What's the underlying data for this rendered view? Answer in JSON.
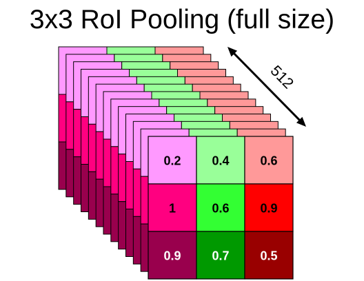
{
  "title": "3x3 RoI Pooling (full size)",
  "depth_label": "512",
  "front_grid": {
    "rows": [
      [
        {
          "value": "0.2",
          "fill": "#ff99ff",
          "text": "#000000"
        },
        {
          "value": "0.4",
          "fill": "#99ff99",
          "text": "#000000"
        },
        {
          "value": "0.6",
          "fill": "#ff9999",
          "text": "#000000"
        }
      ],
      [
        {
          "value": "1",
          "fill": "#ff0080",
          "text": "#000000"
        },
        {
          "value": "0.6",
          "fill": "#33ff33",
          "text": "#000000"
        },
        {
          "value": "0.9",
          "fill": "#ff0000",
          "text": "#000000"
        }
      ],
      [
        {
          "value": "0.9",
          "fill": "#99004d",
          "text": "#ffffff"
        },
        {
          "value": "0.7",
          "fill": "#009900",
          "text": "#ffffff"
        },
        {
          "value": "0.5",
          "fill": "#990000",
          "text": "#ffffff"
        }
      ]
    ]
  },
  "colors": {
    "stroke": "#000000",
    "arrow": "#000000",
    "row_fills": [
      [
        "#ff99ff",
        "#99ff99",
        "#ff9999"
      ],
      [
        "#ff0080",
        "#33ff33",
        "#ff0000"
      ],
      [
        "#99004d",
        "#009900",
        "#990000"
      ]
    ]
  },
  "back_layers_visible": 12
}
